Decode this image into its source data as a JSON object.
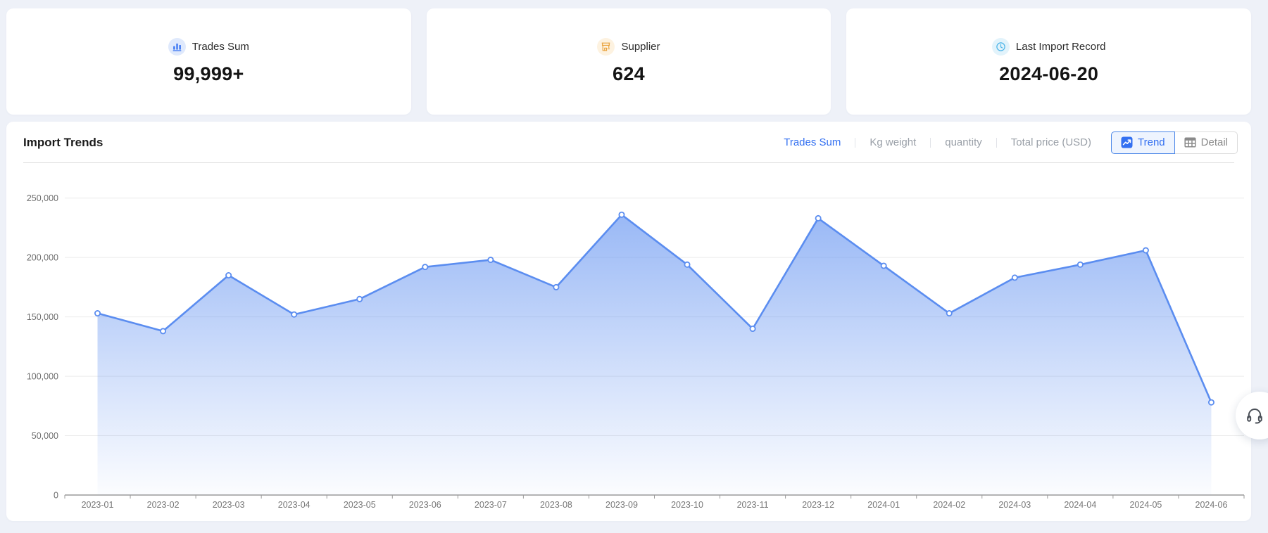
{
  "stat_cards": [
    {
      "icon": "bar-chart-icon",
      "label": "Trades Sum",
      "value": "99,999+"
    },
    {
      "icon": "storefront-icon",
      "label": "Supplier",
      "value": "624"
    },
    {
      "icon": "clock-icon",
      "label": "Last Import Record",
      "value": "2024-06-20"
    }
  ],
  "import_trends": {
    "title": "Import Trends",
    "metric_tabs": [
      {
        "label": "Trades Sum",
        "active": true
      },
      {
        "label": "Kg weight",
        "active": false
      },
      {
        "label": "quantity",
        "active": false
      },
      {
        "label": "Total price (USD)",
        "active": false
      }
    ],
    "view_buttons": [
      {
        "label": "Trend",
        "icon": "trend-chart-icon",
        "active": true
      },
      {
        "label": "Detail",
        "icon": "table-icon",
        "active": false
      }
    ]
  },
  "chart_data": {
    "type": "area",
    "title": "Import Trends",
    "x": [
      "2023-01",
      "2023-02",
      "2023-03",
      "2023-04",
      "2023-05",
      "2023-06",
      "2023-07",
      "2023-08",
      "2023-09",
      "2023-10",
      "2023-11",
      "2023-12",
      "2024-01",
      "2024-02",
      "2024-03",
      "2024-04",
      "2024-05",
      "2024-06"
    ],
    "series": [
      {
        "name": "Trades Sum",
        "values": [
          153000,
          138000,
          185000,
          152000,
          165000,
          192000,
          198000,
          175000,
          236000,
          194000,
          140000,
          233000,
          193000,
          153000,
          183000,
          194000,
          206000,
          78000
        ]
      }
    ],
    "xlabel": "",
    "ylabel": "",
    "ylim": [
      0,
      250000
    ],
    "y_ticks": [
      0,
      50000,
      100000,
      150000,
      200000,
      250000
    ],
    "grid": true,
    "legend_position": "none",
    "line_color": "#5b8df0",
    "marker_fill": "#ffffff",
    "area_fill_top": "rgba(91,141,240,0.62)",
    "area_fill_bottom": "rgba(91,141,240,0.02)"
  },
  "colors": {
    "accent_blue": "#3370f1",
    "supplier_orange": "#e9a23b",
    "clock_cyan": "#49b3e8",
    "page_bg": "#eef1f8"
  },
  "floating": {
    "support_icon": "headset-icon"
  }
}
